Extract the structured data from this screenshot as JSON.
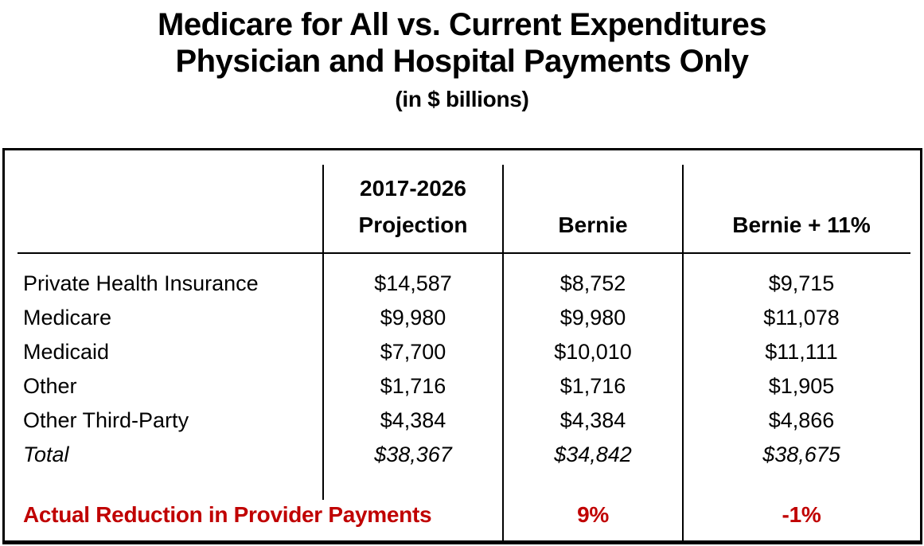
{
  "title": {
    "line1": "Medicare for All vs. Current Expenditures",
    "line2": "Physician and Hospital Payments Only",
    "subtitle": "(in $ billions)"
  },
  "colors": {
    "accent_red": "#C00000",
    "text": "#000000",
    "border": "#000000"
  },
  "table": {
    "header": {
      "projection_line1": "2017-2026",
      "projection_line2": "Projection",
      "bernie": "Bernie",
      "bernie_plus_11": "Bernie + 11%"
    },
    "rows": [
      {
        "label": "Private Health Insurance",
        "projection": "$14,587",
        "bernie": "$8,752",
        "bernie_plus_11": "$9,715"
      },
      {
        "label": "Medicare",
        "projection": "$9,980",
        "bernie": "$9,980",
        "bernie_plus_11": "$11,078"
      },
      {
        "label": "Medicaid",
        "projection": "$7,700",
        "bernie": "$10,010",
        "bernie_plus_11": "$11,111"
      },
      {
        "label": "Other",
        "projection": "$1,716",
        "bernie": "$1,716",
        "bernie_plus_11": "$1,905"
      },
      {
        "label": "Other Third-Party",
        "projection": "$4,384",
        "bernie": "$4,384",
        "bernie_plus_11": "$4,866"
      },
      {
        "label": "Total",
        "projection": "$38,367",
        "bernie": "$34,842",
        "bernie_plus_11": "$38,675"
      }
    ],
    "footer": {
      "label": "Actual Reduction in Provider Payments",
      "bernie": "9%",
      "bernie_plus_11": "-1%"
    }
  },
  "chart_data": {
    "type": "table",
    "title": "Medicare for All vs. Current Expenditures — Physician and Hospital Payments Only (in $ billions)",
    "columns": [
      "",
      "2017-2026 Projection",
      "Bernie",
      "Bernie + 11%"
    ],
    "rows": [
      [
        "Private Health Insurance",
        14587,
        8752,
        9715
      ],
      [
        "Medicare",
        9980,
        9980,
        11078
      ],
      [
        "Medicaid",
        7700,
        10010,
        11111
      ],
      [
        "Other",
        1716,
        1716,
        1905
      ],
      [
        "Other Third-Party",
        4384,
        4384,
        4866
      ],
      [
        "Total",
        38367,
        34842,
        38675
      ],
      [
        "Actual Reduction in Provider Payments",
        null,
        "9%",
        "-1%"
      ]
    ],
    "notes": "Total row italic; last row rendered in bold red (#C00000); values in $ billions"
  }
}
